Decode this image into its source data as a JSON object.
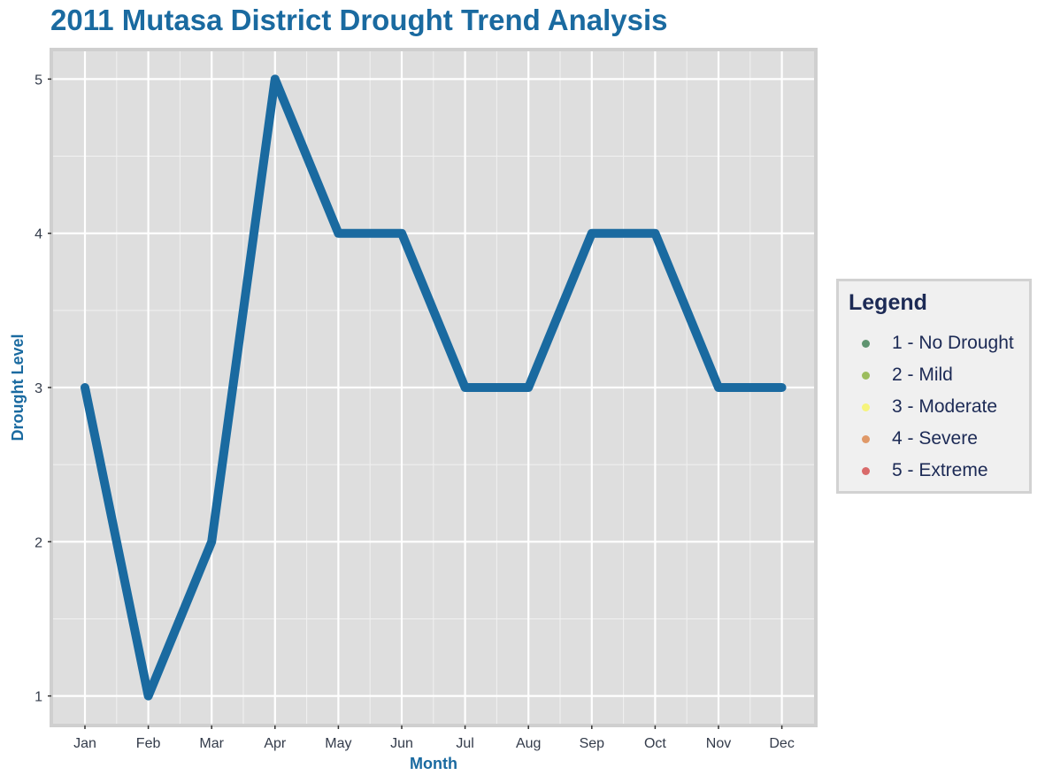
{
  "chart_data": {
    "type": "line",
    "title": "2011 Mutasa District Drought Trend Analysis",
    "xlabel": "Month",
    "ylabel": "Drought Level",
    "categories": [
      "Jan",
      "Feb",
      "Mar",
      "Apr",
      "May",
      "Jun",
      "Jul",
      "Aug",
      "Sep",
      "Oct",
      "Nov",
      "Dec"
    ],
    "series": [
      {
        "values": [
          3,
          1,
          2,
          5,
          4,
          4,
          3,
          3,
          4,
          4,
          3,
          3
        ],
        "color": "#1a6aa0"
      }
    ],
    "y_ticks": [
      1,
      2,
      3,
      4,
      5
    ],
    "ylim": [
      0.82,
      5.18
    ],
    "grid": true,
    "legend": {
      "title": "Legend",
      "position": "right",
      "items": [
        {
          "label": "1 - No Drought",
          "color": "#5f9470"
        },
        {
          "label": "2 - Mild",
          "color": "#9cbd5e"
        },
        {
          "label": "3 - Moderate",
          "color": "#f6f47c"
        },
        {
          "label": "4 - Severe",
          "color": "#e09968"
        },
        {
          "label": "5 - Extreme",
          "color": "#d96a6a"
        }
      ]
    }
  },
  "colors": {
    "title": "#1a6aa0",
    "panel_background": "#dedede",
    "panel_border": "#cfcfcf",
    "line": "#1a6aa0"
  }
}
